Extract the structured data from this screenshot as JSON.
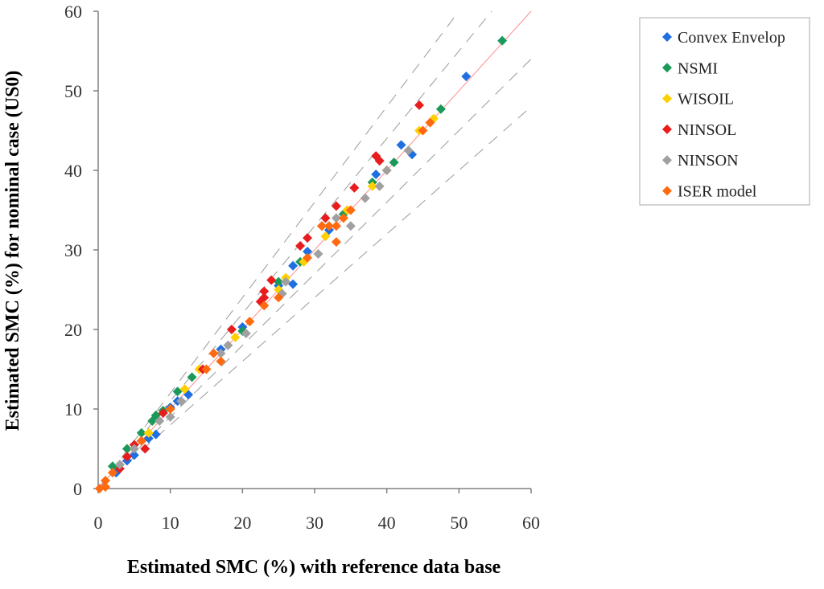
{
  "chart_data": {
    "type": "scatter",
    "xlabel": "Estimated SMC (%) with reference data base",
    "ylabel": "Estimated SMC (%) for nominal case (US0)",
    "xlim": [
      0,
      60
    ],
    "ylim": [
      0,
      60
    ],
    "xticks": [
      0,
      10,
      20,
      30,
      40,
      50,
      60
    ],
    "yticks": [
      0,
      10,
      20,
      30,
      40,
      50,
      60
    ],
    "grid": false,
    "legend_position": "top-right",
    "reference_line": {
      "name": "1:1 line",
      "color": "#ff8c8c"
    },
    "band_lines": [
      {
        "name": "dash-inner-upper",
        "slope": 1.1,
        "color": "#9a9a9a"
      },
      {
        "name": "dash-inner-lower",
        "slope": 0.9,
        "color": "#9a9a9a"
      },
      {
        "name": "dash-outer-upper",
        "slope": 1.2,
        "color": "#9a9a9a"
      },
      {
        "name": "dash-outer-lower",
        "slope": 0.8,
        "color": "#9a9a9a"
      }
    ],
    "series": [
      {
        "name": "Convex Envelop",
        "color": "#1f6fe0",
        "points": [
          [
            2.5,
            2.0
          ],
          [
            4.0,
            3.5
          ],
          [
            5.0,
            4.2
          ],
          [
            7.0,
            6.3
          ],
          [
            8.0,
            6.8
          ],
          [
            10.0,
            10.2
          ],
          [
            11.0,
            11.0
          ],
          [
            12.5,
            11.8
          ],
          [
            17.0,
            17.5
          ],
          [
            20.0,
            20.3
          ],
          [
            25.0,
            25.5
          ],
          [
            27.0,
            25.7
          ],
          [
            27.0,
            28.0
          ],
          [
            29.0,
            29.8
          ],
          [
            32.0,
            32.5
          ],
          [
            34.0,
            34.5
          ],
          [
            38.5,
            39.5
          ],
          [
            42.0,
            43.2
          ],
          [
            43.5,
            42.0
          ],
          [
            51.0,
            51.8
          ]
        ]
      },
      {
        "name": "NSMI",
        "color": "#1a9a5a",
        "points": [
          [
            2.0,
            2.8
          ],
          [
            4.0,
            5.0
          ],
          [
            6.0,
            7.0
          ],
          [
            7.5,
            8.5
          ],
          [
            8.0,
            9.2
          ],
          [
            9.0,
            9.8
          ],
          [
            11.0,
            12.2
          ],
          [
            13.0,
            14.0
          ],
          [
            20.0,
            19.8
          ],
          [
            25.0,
            26.0
          ],
          [
            28.0,
            28.5
          ],
          [
            34.0,
            34.5
          ],
          [
            38.0,
            38.5
          ],
          [
            41.0,
            41.0
          ],
          [
            47.5,
            47.7
          ],
          [
            56.0,
            56.3
          ]
        ]
      },
      {
        "name": "WISOIL",
        "color": "#ffd000",
        "points": [
          [
            3.0,
            3.0
          ],
          [
            6.0,
            6.0
          ],
          [
            7.0,
            7.0
          ],
          [
            12.0,
            12.5
          ],
          [
            14.0,
            15.0
          ],
          [
            19.0,
            19.0
          ],
          [
            25.0,
            25.0
          ],
          [
            26.0,
            26.5
          ],
          [
            28.5,
            28.5
          ],
          [
            31.5,
            31.7
          ],
          [
            34.5,
            35.0
          ],
          [
            38.0,
            38.0
          ],
          [
            40.0,
            40.0
          ],
          [
            44.5,
            45.0
          ],
          [
            46.5,
            46.5
          ]
        ]
      },
      {
        "name": "NINSOL",
        "color": "#e81c1c",
        "points": [
          [
            3.0,
            2.5
          ],
          [
            4.0,
            4.0
          ],
          [
            5.0,
            5.5
          ],
          [
            6.5,
            5.0
          ],
          [
            9.0,
            9.5
          ],
          [
            14.5,
            15.0
          ],
          [
            18.5,
            20.0
          ],
          [
            22.5,
            23.5
          ],
          [
            23.0,
            24.0
          ],
          [
            23.0,
            24.8
          ],
          [
            24.0,
            26.2
          ],
          [
            28.0,
            30.5
          ],
          [
            29.0,
            31.5
          ],
          [
            31.0,
            33.0
          ],
          [
            31.5,
            34.0
          ],
          [
            33.0,
            35.5
          ],
          [
            35.5,
            37.8
          ],
          [
            38.5,
            41.8
          ],
          [
            39.0,
            41.2
          ],
          [
            44.5,
            48.2
          ]
        ]
      },
      {
        "name": "NINSON",
        "color": "#a0a0a0",
        "points": [
          [
            3.0,
            3.0
          ],
          [
            5.0,
            5.0
          ],
          [
            8.5,
            8.5
          ],
          [
            10.0,
            9.0
          ],
          [
            11.5,
            11.0
          ],
          [
            17.0,
            17.0
          ],
          [
            18.0,
            18.0
          ],
          [
            20.5,
            19.5
          ],
          [
            25.5,
            24.5
          ],
          [
            26.0,
            26.0
          ],
          [
            30.5,
            29.5
          ],
          [
            33.0,
            34.0
          ],
          [
            35.0,
            33.0
          ],
          [
            37.0,
            36.5
          ],
          [
            39.0,
            38.0
          ],
          [
            40.0,
            40.0
          ],
          [
            43.0,
            42.5
          ]
        ]
      },
      {
        "name": "ISER model",
        "color": "#ff6a10",
        "points": [
          [
            0.2,
            0.0
          ],
          [
            1.0,
            0.2
          ],
          [
            1.0,
            1.0
          ],
          [
            2.0,
            2.0
          ],
          [
            6.0,
            6.0
          ],
          [
            10.0,
            10.0
          ],
          [
            15.0,
            15.0
          ],
          [
            16.0,
            17.0
          ],
          [
            17.0,
            16.0
          ],
          [
            21.0,
            21.0
          ],
          [
            23.0,
            23.0
          ],
          [
            25.0,
            24.0
          ],
          [
            29.0,
            29.0
          ],
          [
            31.0,
            33.0
          ],
          [
            32.0,
            33.0
          ],
          [
            33.0,
            31.0
          ],
          [
            33.0,
            33.0
          ],
          [
            34.0,
            34.0
          ],
          [
            35.0,
            35.0
          ],
          [
            45.0,
            45.0
          ],
          [
            46.0,
            46.0
          ]
        ]
      }
    ]
  }
}
